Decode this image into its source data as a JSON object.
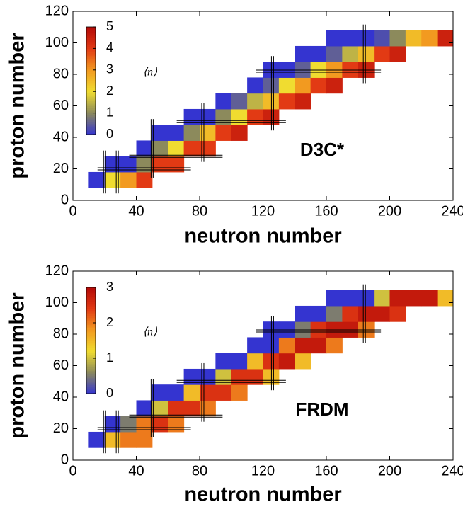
{
  "chart_data": [
    {
      "type": "heatmap",
      "label": "D3C*",
      "xlabel": "neutron number",
      "ylabel": "proton number",
      "colorbar_label": "⟨n⟩",
      "x_edges": [
        10,
        20,
        30,
        40,
        50,
        60,
        70,
        80,
        90,
        100,
        110,
        120,
        130,
        140,
        150,
        160,
        170,
        180,
        190,
        200,
        210,
        220,
        230,
        240
      ],
      "y_edges": [
        8,
        18,
        28,
        38,
        48,
        58,
        68,
        78,
        88,
        98,
        108
      ],
      "values": [
        [
          0,
          2,
          3,
          4,
          null,
          null,
          null,
          null,
          null,
          null,
          null,
          null,
          null,
          null,
          null,
          null,
          null,
          null,
          null,
          null,
          null,
          null,
          null
        ],
        [
          null,
          0,
          0,
          1,
          4,
          4,
          null,
          null,
          null,
          null,
          null,
          null,
          null,
          null,
          null,
          null,
          null,
          null,
          null,
          null,
          null,
          null,
          null
        ],
        [
          null,
          null,
          null,
          0,
          1,
          2,
          4,
          4,
          null,
          null,
          null,
          null,
          null,
          null,
          null,
          null,
          null,
          null,
          null,
          null,
          null,
          null,
          null
        ],
        [
          null,
          null,
          null,
          null,
          0,
          0,
          1,
          2.5,
          4,
          4.5,
          null,
          null,
          null,
          null,
          null,
          null,
          null,
          null,
          null,
          null,
          null,
          null,
          null
        ],
        [
          null,
          null,
          null,
          null,
          null,
          null,
          0,
          0,
          1,
          2,
          4,
          4.5,
          null,
          null,
          null,
          null,
          null,
          null,
          null,
          null,
          null,
          null,
          null
        ],
        [
          null,
          null,
          null,
          null,
          null,
          null,
          null,
          null,
          0,
          0.5,
          1.5,
          2.5,
          4,
          4.5,
          null,
          null,
          null,
          null,
          null,
          null,
          null,
          null,
          null
        ],
        [
          null,
          null,
          null,
          null,
          null,
          null,
          null,
          null,
          null,
          null,
          0,
          0.5,
          2,
          3,
          4,
          4.5,
          null,
          null,
          null,
          null,
          null,
          null,
          null
        ],
        [
          null,
          null,
          null,
          null,
          null,
          null,
          null,
          null,
          null,
          null,
          null,
          0,
          0,
          0.5,
          2,
          3,
          4,
          4.5,
          null,
          null,
          null,
          null,
          null
        ],
        [
          null,
          null,
          null,
          null,
          null,
          null,
          null,
          null,
          null,
          null,
          null,
          null,
          null,
          0,
          0,
          0.5,
          1.5,
          2.5,
          4,
          4.5,
          null,
          null,
          null
        ],
        [
          null,
          null,
          null,
          null,
          null,
          null,
          null,
          null,
          null,
          null,
          null,
          null,
          null,
          null,
          null,
          0,
          0,
          0,
          0.3,
          1,
          2.5,
          3,
          4.5
        ]
      ],
      "clim": [
        0,
        5
      ],
      "cticks": [
        0,
        1,
        2,
        3,
        4,
        5
      ],
      "colormap": [
        "#3434d0",
        "#8c8a5c",
        "#f0dc30",
        "#f29a20",
        "#e23a14",
        "#b40a08"
      ],
      "xlim": [
        0,
        240
      ],
      "xticks": [
        0,
        40,
        80,
        120,
        160,
        200,
        240
      ],
      "ylim": [
        0,
        120
      ],
      "yticks": [
        0,
        20,
        40,
        60,
        80,
        100,
        120
      ],
      "magic_numbers": {
        "neutron": [
          20,
          28,
          50,
          82,
          126,
          184
        ],
        "proton": [
          20,
          28,
          50,
          82
        ]
      }
    },
    {
      "type": "heatmap",
      "label": "FRDM",
      "xlabel": "neutron number",
      "ylabel": "proton number",
      "colorbar_label": "⟨n⟩",
      "x_edges": [
        10,
        20,
        30,
        40,
        50,
        60,
        70,
        80,
        90,
        100,
        110,
        120,
        130,
        140,
        150,
        160,
        170,
        180,
        190,
        200,
        210,
        220,
        230,
        240
      ],
      "y_edges": [
        8,
        18,
        28,
        38,
        48,
        58,
        68,
        78,
        88,
        98,
        108
      ],
      "values": [
        [
          0,
          1.5,
          2,
          2,
          null,
          null,
          null,
          null,
          null,
          null,
          null,
          null,
          null,
          null,
          null,
          null,
          null,
          null,
          null,
          null,
          null,
          null,
          null
        ],
        [
          null,
          0,
          0.5,
          2,
          2.5,
          2,
          null,
          null,
          null,
          null,
          null,
          null,
          null,
          null,
          null,
          null,
          null,
          null,
          null,
          null,
          null,
          null,
          null
        ],
        [
          null,
          null,
          null,
          0,
          1,
          2.5,
          2.5,
          2,
          null,
          null,
          null,
          null,
          null,
          null,
          null,
          null,
          null,
          null,
          null,
          null,
          null,
          null,
          null
        ],
        [
          null,
          null,
          null,
          null,
          0,
          0,
          1.5,
          2.5,
          2.5,
          2,
          null,
          null,
          null,
          null,
          null,
          null,
          null,
          null,
          null,
          null,
          null,
          null,
          null
        ],
        [
          null,
          null,
          null,
          null,
          null,
          null,
          0,
          0,
          1,
          2.5,
          2.5,
          1.5,
          null,
          null,
          null,
          null,
          null,
          null,
          null,
          null,
          null,
          null,
          null
        ],
        [
          null,
          null,
          null,
          null,
          null,
          null,
          null,
          null,
          0,
          0,
          1.5,
          2.5,
          2.8,
          1.5,
          null,
          null,
          null,
          null,
          null,
          null,
          null,
          null,
          null
        ],
        [
          null,
          null,
          null,
          null,
          null,
          null,
          null,
          null,
          null,
          null,
          0,
          0,
          2,
          2.8,
          2.8,
          2,
          null,
          null,
          null,
          null,
          null,
          null,
          null
        ],
        [
          null,
          null,
          null,
          null,
          null,
          null,
          null,
          null,
          null,
          null,
          null,
          0,
          0,
          0.5,
          2.5,
          2.8,
          2.8,
          2,
          null,
          null,
          null,
          null,
          null
        ],
        [
          null,
          null,
          null,
          null,
          null,
          null,
          null,
          null,
          null,
          null,
          null,
          null,
          null,
          0,
          0,
          0.5,
          2.5,
          2.8,
          2.8,
          2.5,
          null,
          null,
          null
        ],
        [
          null,
          null,
          null,
          null,
          null,
          null,
          null,
          null,
          null,
          null,
          null,
          null,
          null,
          null,
          null,
          0,
          0,
          0,
          1,
          2.8,
          2.8,
          2.8,
          1.5
        ]
      ],
      "clim": [
        0,
        3
      ],
      "cticks": [
        0,
        1,
        2,
        3
      ],
      "colormap": [
        "#3434d0",
        "#8c8a5c",
        "#f0dc30",
        "#f29a20",
        "#e23a14",
        "#b40a08"
      ],
      "xlim": [
        0,
        240
      ],
      "xticks": [
        0,
        40,
        80,
        120,
        160,
        200,
        240
      ],
      "ylim": [
        0,
        120
      ],
      "yticks": [
        0,
        20,
        40,
        60,
        80,
        100,
        120
      ],
      "magic_numbers": {
        "neutron": [
          20,
          28,
          50,
          82,
          126,
          184
        ],
        "proton": [
          20,
          28,
          50,
          82
        ]
      }
    }
  ]
}
